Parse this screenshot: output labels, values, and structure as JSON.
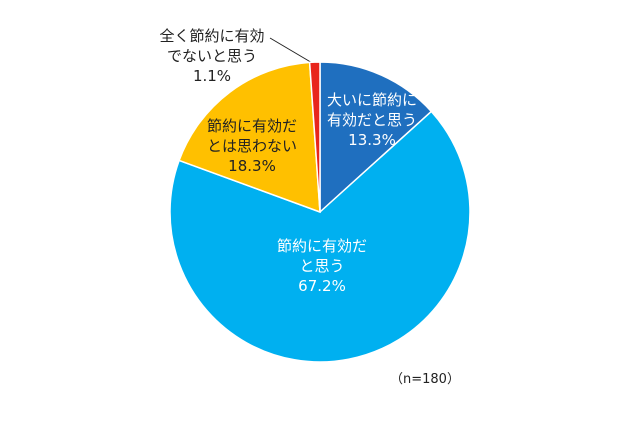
{
  "chart_data": {
    "type": "pie",
    "categories": [
      "大いに節約に有効だと思う",
      "節約に有効だと思う",
      "節約に有効だとは思わない",
      "全く節約に有効でないと思う"
    ],
    "values": [
      13.3,
      67.2,
      18.3,
      1.1
    ],
    "value_labels": [
      "13.3%",
      "67.2%",
      "18.3%",
      "1.1%"
    ],
    "colors": [
      "#1f6fbf",
      "#00b0f0",
      "#ffc000",
      "#e8251c"
    ],
    "note": "（n=180）"
  }
}
